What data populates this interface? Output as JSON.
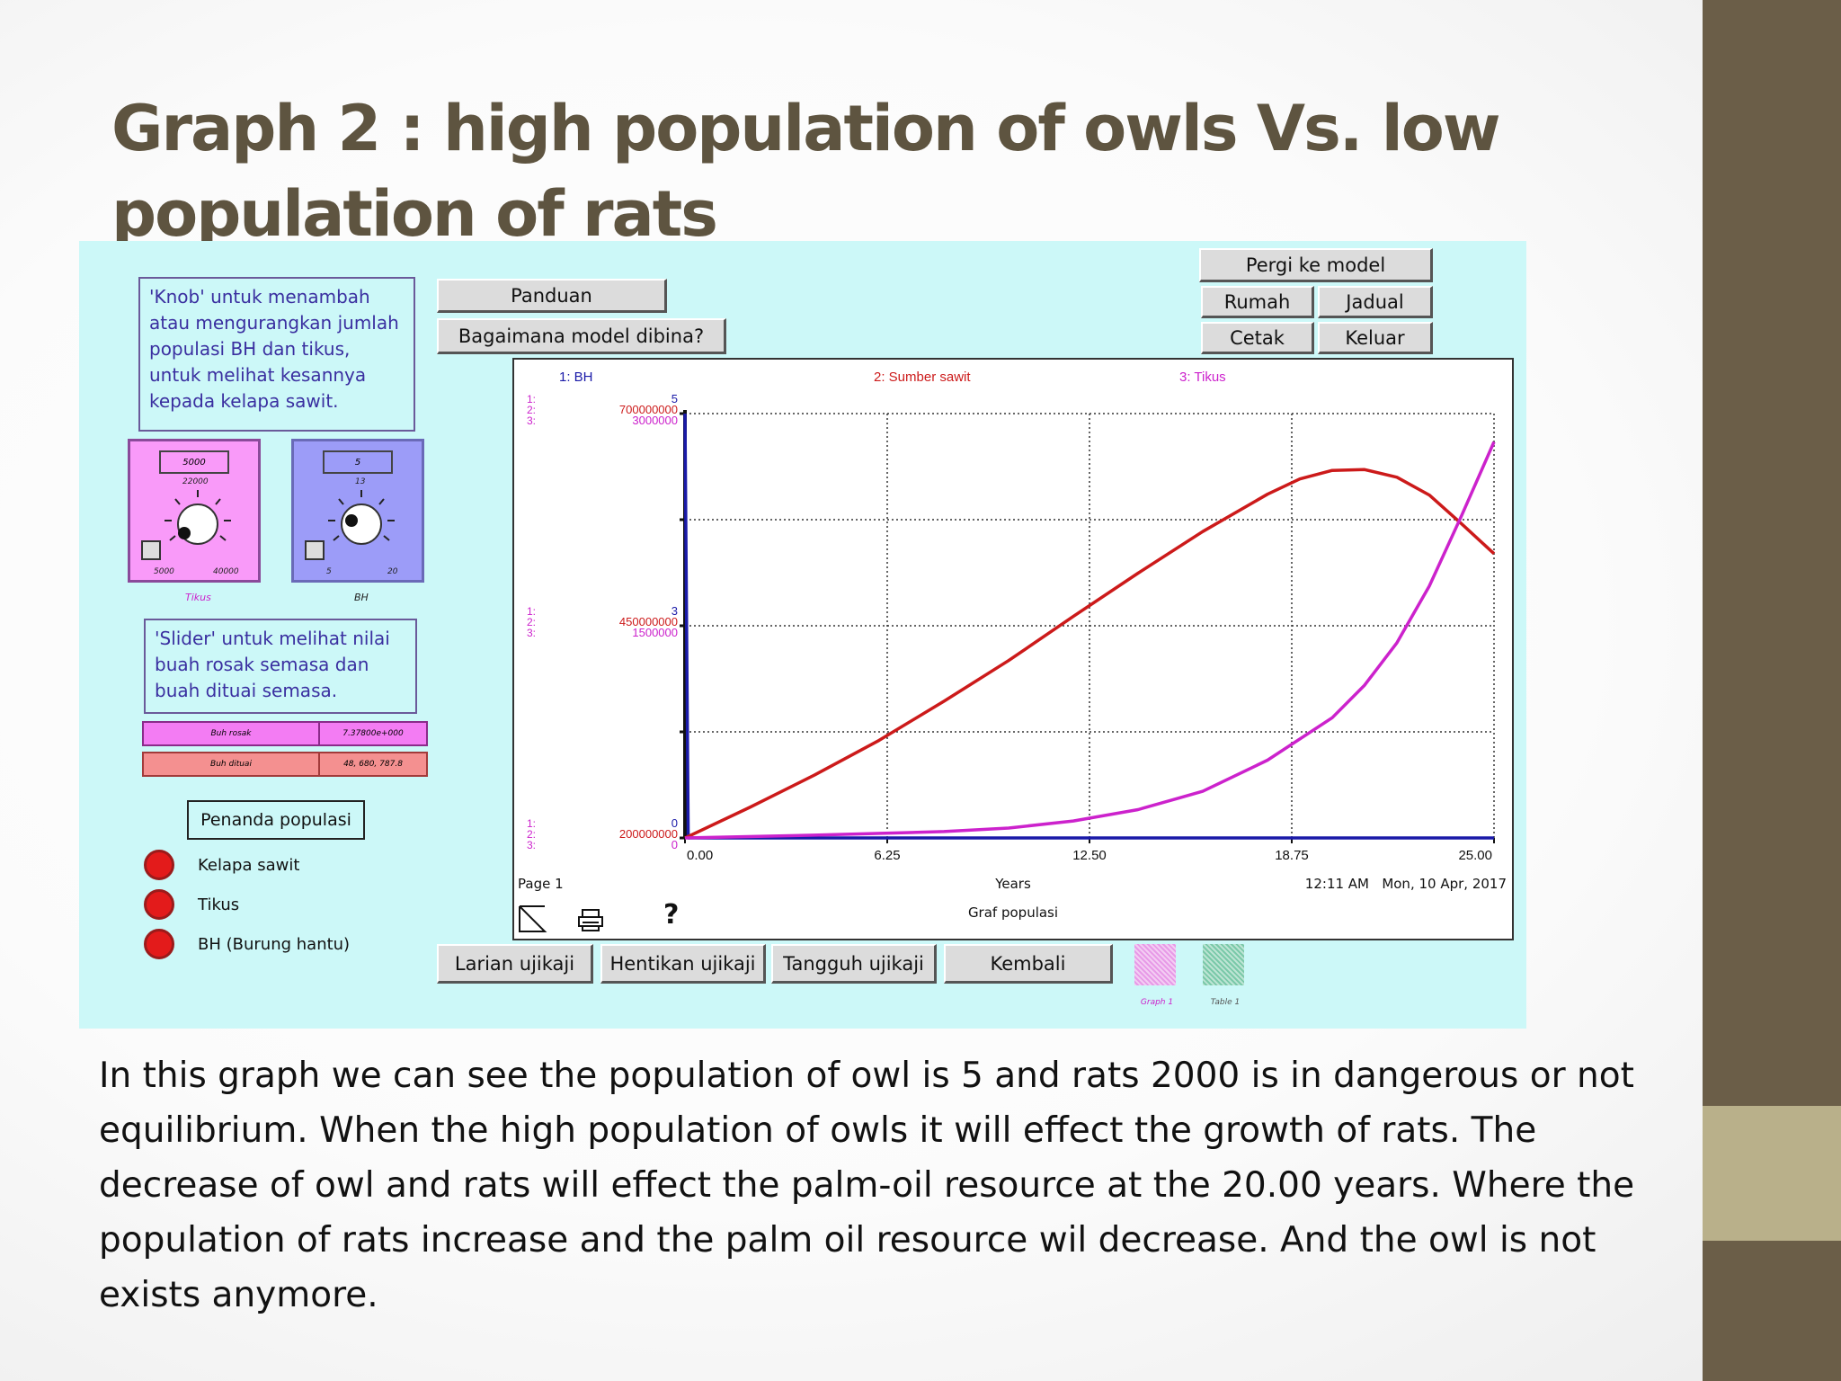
{
  "slide": {
    "title": "Graph 2 : high population of owls Vs. low population of rats",
    "body": "In this graph we can see the population of owl is 5 and rats 2000 is in dangerous or not equilibrium. When the high population of owls it will effect the growth of rats. The decrease of owl and rats will effect the palm-oil resource at the 20.00 years. Where the population of rats increase and the palm oil resource wil decrease. And the owl is not exists anymore.",
    "colors": {
      "band_dark": "#6b5e48",
      "band_light": "#b9b08a",
      "title": "#5e5440",
      "app_bg": "#ccf8f8"
    }
  },
  "app": {
    "nav": {
      "pergi_ke_model": "Pergi ke model",
      "rumah": "Rumah",
      "jadual": "Jadual",
      "cetak": "Cetak",
      "keluar": "Keluar",
      "panduan": "Panduan",
      "bagaimana": "Bagaimana model dibina?"
    },
    "knob_note": "'Knob' untuk menambah atau mengurangkan jumlah populasi BH dan tikus, untuk melihat kesannya kepada kelapa sawit.",
    "slider_note": "'Slider' untuk melihat nilai buah rosak semasa dan buah dituai semasa.",
    "knobs": [
      {
        "name": "Tikus",
        "value": "5000",
        "current": "22000",
        "min": "5000",
        "max": "40000",
        "color": "#f99af9",
        "level": 0.45
      },
      {
        "name": "BH",
        "value": "5",
        "current": "13",
        "min": "5",
        "max": "20",
        "color": "#9c9cf8",
        "level": 0.5
      }
    ],
    "sliders": [
      {
        "label": "Buh rosak",
        "value": "7.37800e+000",
        "color": "#f37cf3"
      },
      {
        "label": "Buh dituai",
        "value": "48, 680, 787.8",
        "color": "#f49090"
      }
    ],
    "indicator": {
      "title": "Penanda populasi",
      "items": [
        "Kelapa sawit",
        "Tikus",
        "BH (Burung hantu)"
      ]
    },
    "controls": {
      "run": "Larian ujikaji",
      "stop": "Hentikan ujikaji",
      "pause": "Tangguh ujikaji",
      "back": "Kembali",
      "swatch1": "Graph 1",
      "swatch2": "Table 1"
    },
    "graph": {
      "page": "Page 1",
      "xlabel": "Years",
      "caption": "Graf populasi",
      "time": "12:11 AM",
      "date": "Mon, 10 Apr, 2017",
      "help": "?",
      "axis_prefix": [
        "1:",
        "2:",
        "3:"
      ]
    }
  },
  "chart_data": {
    "type": "line",
    "title": "Graf populasi",
    "xlabel": "Years",
    "xlim": [
      0,
      25
    ],
    "x_ticks": [
      "0.00",
      "6.25",
      "12.50",
      "18.75",
      "25.00"
    ],
    "grid": true,
    "legend": [
      "1: BH",
      "2: Sumber sawit",
      "3: Tikus"
    ],
    "y_axes": [
      {
        "series": "1: BH",
        "ticks": [
          "0",
          "3",
          "5"
        ],
        "ylim": [
          0,
          5
        ]
      },
      {
        "series": "2: Sumber sawit",
        "ticks": [
          "200000000",
          "450000000",
          "700000000"
        ],
        "ylim": [
          200000000,
          700000000
        ]
      },
      {
        "series": "3: Tikus",
        "ticks": [
          "0",
          "1500000",
          "3000000"
        ],
        "ylim": [
          0,
          3000000
        ]
      }
    ],
    "series": [
      {
        "name": "1: BH",
        "color": "#1a1aa8",
        "x": [
          0,
          0.05,
          0.1,
          25
        ],
        "values": [
          5,
          2.5,
          0,
          0
        ]
      },
      {
        "name": "2: Sumber sawit",
        "color": "#cc1a1a",
        "x": [
          0,
          2,
          4,
          6,
          8,
          10,
          12,
          14,
          16,
          18,
          19,
          20,
          21,
          22,
          23,
          24,
          25
        ],
        "values": [
          200000000,
          236000000,
          274000000,
          315000000,
          361000000,
          409000000,
          461000000,
          512000000,
          561000000,
          605000000,
          623000000,
          633000000,
          634000000,
          625000000,
          604000000,
          570000000,
          535000000
        ]
      },
      {
        "name": "3: Tikus",
        "color": "#cc22cc",
        "x": [
          0,
          4,
          8,
          10,
          12,
          14,
          16,
          18,
          20,
          21,
          22,
          23,
          24,
          25
        ],
        "values": [
          0,
          20000,
          45000,
          70000,
          120000,
          200000,
          330000,
          550000,
          850000,
          1080000,
          1380000,
          1780000,
          2280000,
          2800000
        ]
      }
    ]
  }
}
